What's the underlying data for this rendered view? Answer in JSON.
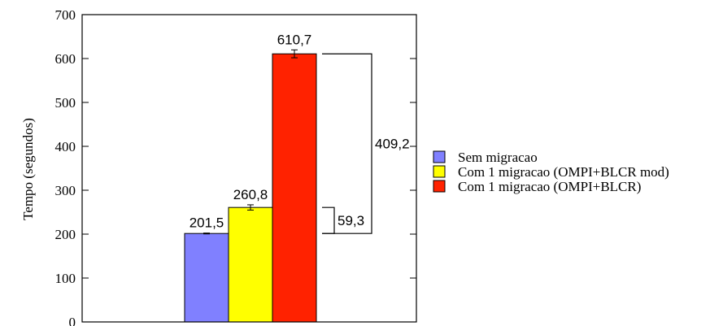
{
  "chart_data": {
    "type": "bar",
    "categories": [
      ""
    ],
    "ylabel": "Tempo (segundos)",
    "ylim": [
      0,
      700
    ],
    "yticks": [
      0,
      100,
      200,
      300,
      400,
      500,
      600,
      700
    ],
    "grid": false,
    "legend_position": "right",
    "series": [
      {
        "name": "Sem migracao",
        "values": [
          201.5
        ],
        "label": "201,5",
        "error": [
          1
        ],
        "color": "#8080ff"
      },
      {
        "name": "Com 1 migracao (OMPI+BLCR mod)",
        "values": [
          260.8
        ],
        "label": "260,8",
        "error": [
          6
        ],
        "color": "#ffff00"
      },
      {
        "name": "Com 1 migracao (OMPI+BLCR)",
        "values": [
          610.7
        ],
        "label": "610,7",
        "error": [
          9
        ],
        "color": "#ff2200"
      }
    ],
    "annotations": [
      {
        "text": "59,3",
        "from": 201.5,
        "to": 260.8
      },
      {
        "text": "409,2",
        "from": 201.5,
        "to": 610.7
      }
    ]
  }
}
